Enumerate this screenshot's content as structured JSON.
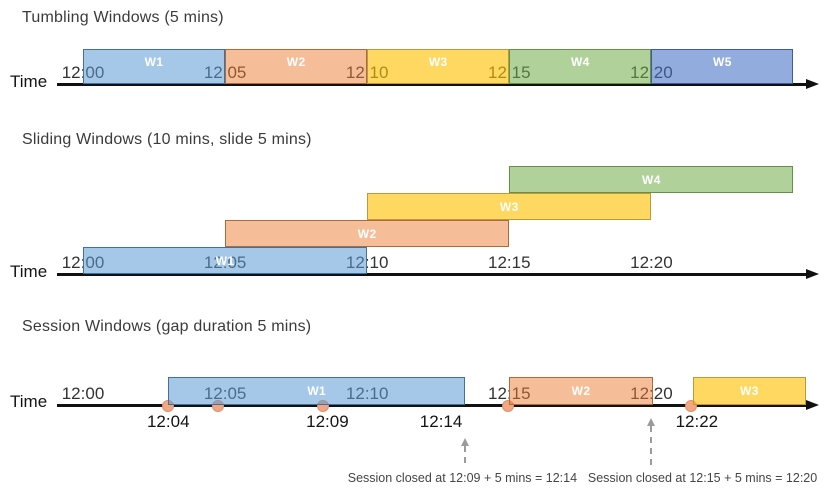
{
  "palette": {
    "blue": {
      "fill": "#5B9BD5",
      "fill_alpha": 0.55,
      "border": "#41719C"
    },
    "orange": {
      "fill": "#ED7D31",
      "fill_alpha": 0.5,
      "border": "#AC6B3E"
    },
    "yellow": {
      "fill": "#FFC000",
      "fill_alpha": 0.62,
      "border": "#BF9939"
    },
    "green": {
      "fill": "#70AD47",
      "fill_alpha": 0.55,
      "border": "#649145"
    },
    "blue2": {
      "fill": "#4472C4",
      "fill_alpha": 0.58,
      "border": "#3C5C9E"
    },
    "dot_fill": "#F4A583",
    "dot_border": "#DD9067",
    "timeline": "#111111"
  },
  "timeline_ticks": [
    {
      "label": "12:00",
      "min": 0
    },
    {
      "label": "12:05",
      "min": 5
    },
    {
      "label": "12:10",
      "min": 10
    },
    {
      "label": "12:15",
      "min": 15
    },
    {
      "label": "12:20",
      "min": 20
    }
  ],
  "sections": [
    {
      "title": "Tumbling Windows (5 mins)",
      "time_label": "Time",
      "windows": [
        {
          "label": "W1",
          "color": "blue",
          "start": 0,
          "end": 5,
          "row": 0
        },
        {
          "label": "W2",
          "color": "orange",
          "start": 5,
          "end": 10,
          "row": 0
        },
        {
          "label": "W3",
          "color": "yellow",
          "start": 10,
          "end": 15,
          "row": 0
        },
        {
          "label": "W4",
          "color": "green",
          "start": 15,
          "end": 20,
          "row": 0
        },
        {
          "label": "W5",
          "color": "blue2",
          "start": 20,
          "end": 25,
          "row": 0
        }
      ]
    },
    {
      "title": "Sliding Windows (10 mins, slide 5 mins)",
      "time_label": "Time",
      "windows": [
        {
          "label": "W1",
          "color": "blue",
          "start": 0,
          "end": 10,
          "row": 0
        },
        {
          "label": "W2",
          "color": "orange",
          "start": 5,
          "end": 15,
          "row": 1
        },
        {
          "label": "W3",
          "color": "yellow",
          "start": 10,
          "end": 20,
          "row": 2
        },
        {
          "label": "W4",
          "color": "green",
          "start": 15,
          "end": 25,
          "row": 3
        }
      ]
    },
    {
      "title": "Session Windows (gap duration 5 mins)",
      "time_label": "Time",
      "windows": [
        {
          "label": "W1",
          "color": "blue",
          "start": 3.0,
          "end": 13.45,
          "row": 0
        },
        {
          "label": "W2",
          "color": "orange",
          "start": 15.0,
          "end": 20.05,
          "row": 0
        },
        {
          "label": "W3",
          "color": "yellow",
          "start": 21.45,
          "end": 25.45,
          "row": 0
        }
      ],
      "event_dots": [
        {
          "min": 3.0
        },
        {
          "min": 4.75
        },
        {
          "min": 8.45
        },
        {
          "min": 14.95
        },
        {
          "min": 21.4
        }
      ],
      "event_labels": [
        {
          "label": "12:04",
          "min": 3.0
        },
        {
          "label": "12:09",
          "min": 8.6
        },
        {
          "label": "12:14",
          "min": 12.6
        },
        {
          "label": "12:22",
          "min": 21.6
        }
      ],
      "closures": [
        {
          "text": "Session closed at 12:09 + 5 mins = 12:14",
          "arrow_min": 13.45,
          "text_center_min": 13.35
        },
        {
          "text": "Session closed at 12:15 + 5 mins = 12:20",
          "arrow_min": 20.0,
          "text_center_min": 21.8
        }
      ]
    }
  ]
}
